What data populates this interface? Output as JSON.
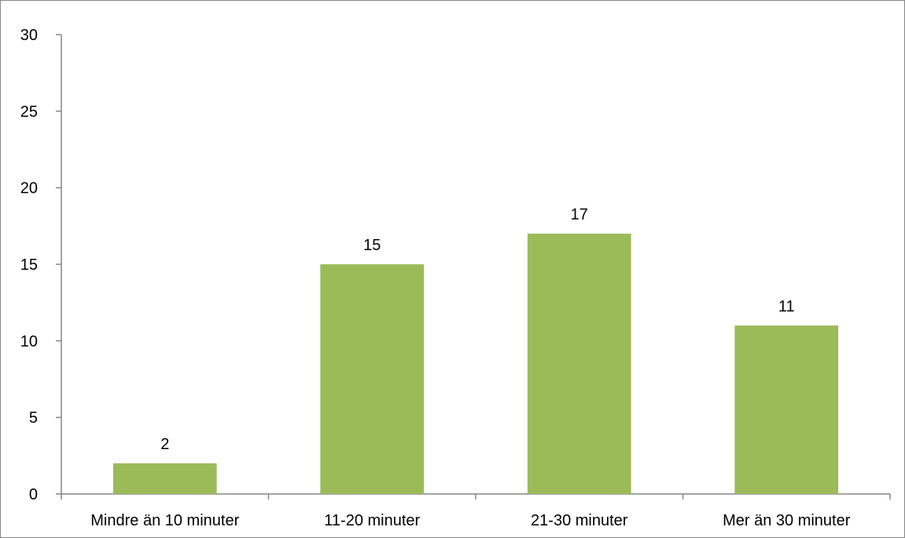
{
  "chart_data": {
    "type": "bar",
    "categories": [
      "Mindre än 10 minuter",
      "11-20 minuter",
      "21-30 minuter",
      "Mer än 30 minuter"
    ],
    "values": [
      2,
      15,
      17,
      11
    ],
    "data_labels": [
      "2",
      "15",
      "17",
      "11"
    ],
    "yticks": [
      "0",
      "5",
      "10",
      "15",
      "20",
      "25",
      "30"
    ],
    "ylim": [
      0,
      30
    ],
    "title": "",
    "xlabel": "",
    "ylabel": "",
    "grid": false,
    "legend": "none",
    "bar_color": "#9BBB59",
    "axis_color": "#868686"
  }
}
